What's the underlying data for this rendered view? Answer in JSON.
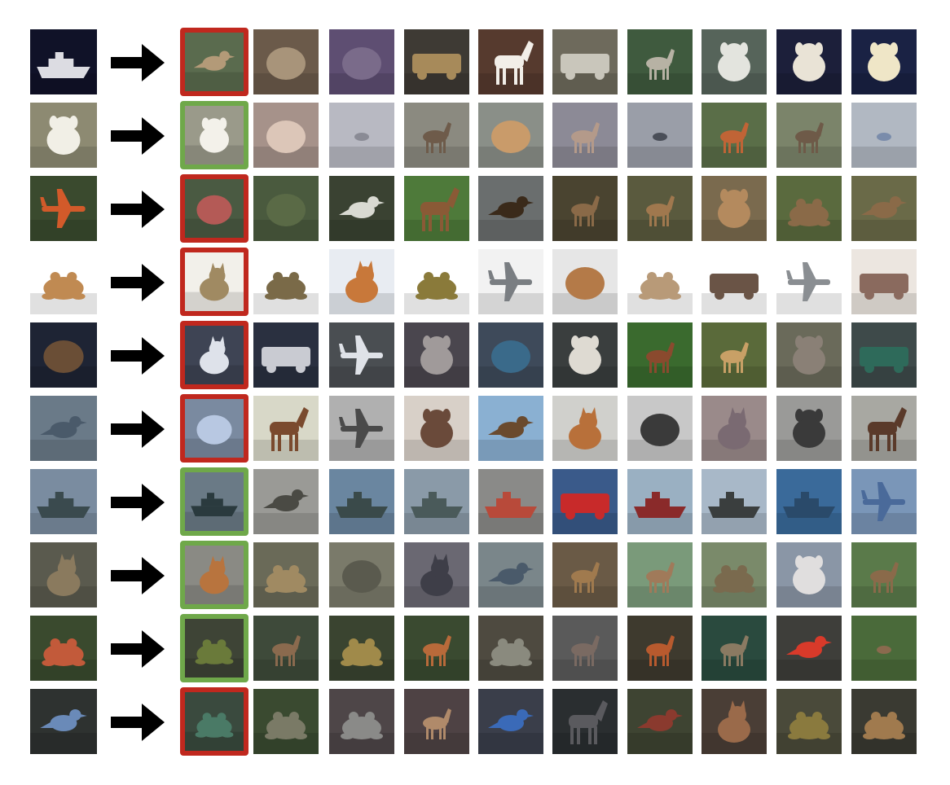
{
  "colors": {
    "incorrect": "#c0281e",
    "correct": "#6fa84a",
    "arrow": "#000000"
  },
  "rows": [
    {
      "query": {
        "bg": "#101228",
        "fg": "#dcdce2",
        "shape": "boat"
      },
      "first_match": "incorrect",
      "results": [
        {
          "bg": "#5a6b4e",
          "fg": "#b39a78",
          "shape": "bird"
        },
        {
          "bg": "#6b5a4a",
          "fg": "#a8947a",
          "shape": "blob"
        },
        {
          "bg": "#5e4e72",
          "fg": "#7a6b8a",
          "shape": "blob"
        },
        {
          "bg": "#3e3a34",
          "fg": "#a78a5a",
          "shape": "wide"
        },
        {
          "bg": "#563a2e",
          "fg": "#f2eee8",
          "shape": "horse"
        },
        {
          "bg": "#6e6a5c",
          "fg": "#c9c6bb",
          "shape": "wide"
        },
        {
          "bg": "#3f5a3e",
          "fg": "#b7b2a4",
          "shape": "deer"
        },
        {
          "bg": "#56645a",
          "fg": "#e3e4de",
          "shape": "dog"
        },
        {
          "bg": "#1c1f3a",
          "fg": "#e9e3d6",
          "shape": "dog"
        },
        {
          "bg": "#1a2244",
          "fg": "#efe6c7",
          "shape": "dog"
        }
      ]
    },
    {
      "query": {
        "bg": "#8d8a72",
        "fg": "#f1efe6",
        "shape": "dog"
      },
      "first_match": "correct",
      "results": [
        {
          "bg": "#9a9a8a",
          "fg": "#f3f1ea",
          "shape": "dog"
        },
        {
          "bg": "#a6928a",
          "fg": "#dcc6b8",
          "shape": "blob"
        },
        {
          "bg": "#b8b9c2",
          "fg": "#8a8b95",
          "shape": "dot"
        },
        {
          "bg": "#8b8a80",
          "fg": "#6e5b4a",
          "shape": "deer"
        },
        {
          "bg": "#8a8f88",
          "fg": "#c99b6a",
          "shape": "blob"
        },
        {
          "bg": "#8c8a96",
          "fg": "#b49a8a",
          "shape": "deer"
        },
        {
          "bg": "#9a9ea8",
          "fg": "#4a4e58",
          "shape": "dot"
        },
        {
          "bg": "#5a6e48",
          "fg": "#c06436",
          "shape": "deer"
        },
        {
          "bg": "#7b846a",
          "fg": "#6e5a48",
          "shape": "deer"
        },
        {
          "bg": "#b1b8c2",
          "fg": "#7a8cab",
          "shape": "dot"
        }
      ]
    },
    {
      "query": {
        "bg": "#3a4a2e",
        "fg": "#d25a2a",
        "shape": "plane"
      },
      "first_match": "incorrect",
      "results": [
        {
          "bg": "#4a5a42",
          "fg": "#b45a56",
          "shape": "blob"
        },
        {
          "bg": "#4a5a3e",
          "fg": "#5a6a46",
          "shape": "blob"
        },
        {
          "bg": "#3a4232",
          "fg": "#d9dad2",
          "shape": "bird"
        },
        {
          "bg": "#4e7a3a",
          "fg": "#8a5a36",
          "shape": "horse"
        },
        {
          "bg": "#6a6e6e",
          "fg": "#3a2a1a",
          "shape": "bird"
        },
        {
          "bg": "#4a4430",
          "fg": "#8a6a48",
          "shape": "deer"
        },
        {
          "bg": "#5a5a3e",
          "fg": "#a0784e",
          "shape": "deer"
        },
        {
          "bg": "#7a6a4e",
          "fg": "#b48a5e",
          "shape": "dog"
        },
        {
          "bg": "#5a6a3e",
          "fg": "#8a6a48",
          "shape": "frog"
        },
        {
          "bg": "#6a6a48",
          "fg": "#8a6a48",
          "shape": "bird"
        }
      ]
    },
    {
      "query": {
        "bg": "#ffffff",
        "fg": "#c08a52",
        "shape": "frog"
      },
      "first_match": "incorrect",
      "results": [
        {
          "bg": "#f2f0ea",
          "fg": "#a08a62",
          "shape": "cat"
        },
        {
          "bg": "#ffffff",
          "fg": "#7a6a48",
          "shape": "frog"
        },
        {
          "bg": "#e8ecf2",
          "fg": "#c8783a",
          "shape": "cat"
        },
        {
          "bg": "#ffffff",
          "fg": "#8a7a3a",
          "shape": "frog"
        },
        {
          "bg": "#f2f2f2",
          "fg": "#7a7e82",
          "shape": "plane"
        },
        {
          "bg": "#e6e6e6",
          "fg": "#b47a48",
          "shape": "blob"
        },
        {
          "bg": "#ffffff",
          "fg": "#b89a78",
          "shape": "frog"
        },
        {
          "bg": "#ffffff",
          "fg": "#6a5446",
          "shape": "wide"
        },
        {
          "bg": "#ffffff",
          "fg": "#8a8e92",
          "shape": "plane"
        },
        {
          "bg": "#ece6e0",
          "fg": "#8a6a5e",
          "shape": "wide"
        }
      ]
    },
    {
      "query": {
        "bg": "#1e2434",
        "fg": "#6a4e36",
        "shape": "blob"
      },
      "first_match": "incorrect",
      "results": [
        {
          "bg": "#3e4454",
          "fg": "#dee2ea",
          "shape": "cat"
        },
        {
          "bg": "#2a3040",
          "fg": "#c9cbd2",
          "shape": "wide"
        },
        {
          "bg": "#4a4e52",
          "fg": "#dfe2e8",
          "shape": "plane"
        },
        {
          "bg": "#4a464e",
          "fg": "#a09a9a",
          "shape": "dog"
        },
        {
          "bg": "#3e4a5a",
          "fg": "#3a6a8a",
          "shape": "blob"
        },
        {
          "bg": "#3a3e3e",
          "fg": "#dedad2",
          "shape": "dog"
        },
        {
          "bg": "#3a6a2e",
          "fg": "#8a4a2e",
          "shape": "deer"
        },
        {
          "bg": "#5a6a3a",
          "fg": "#c8a066",
          "shape": "deer"
        },
        {
          "bg": "#6a6a5a",
          "fg": "#8a8076",
          "shape": "dog"
        },
        {
          "bg": "#3e4a4a",
          "fg": "#2e6a5a",
          "shape": "wide"
        }
      ]
    },
    {
      "query": {
        "bg": "#6a7a88",
        "fg": "#4a5a6a",
        "shape": "bird"
      },
      "first_match": "incorrect",
      "results": [
        {
          "bg": "#7a8aa0",
          "fg": "#b8c8e2",
          "shape": "blob"
        },
        {
          "bg": "#d8d8c8",
          "fg": "#7a4a2e",
          "shape": "horse"
        },
        {
          "bg": "#b0b0b0",
          "fg": "#4a4a4a",
          "shape": "plane"
        },
        {
          "bg": "#d8d0c8",
          "fg": "#6a4a3a",
          "shape": "dog"
        },
        {
          "bg": "#8ab0d2",
          "fg": "#6a4a2e",
          "shape": "bird"
        },
        {
          "bg": "#d0d0cc",
          "fg": "#b8703a",
          "shape": "cat"
        },
        {
          "bg": "#c8c8c8",
          "fg": "#3a3a3a",
          "shape": "blob"
        },
        {
          "bg": "#9a8a8a",
          "fg": "#7a6a72",
          "shape": "cat"
        },
        {
          "bg": "#9a9a98",
          "fg": "#3a3a3a",
          "shape": "dog"
        },
        {
          "bg": "#a8a8a2",
          "fg": "#5a3a2a",
          "shape": "horse"
        }
      ]
    },
    {
      "query": {
        "bg": "#7a8ca0",
        "fg": "#3a4a4e",
        "shape": "boat"
      },
      "first_match": "correct",
      "results": [
        {
          "bg": "#6a7a86",
          "fg": "#2a3a3e",
          "shape": "boat"
        },
        {
          "bg": "#9a9a96",
          "fg": "#4a4a44",
          "shape": "bird"
        },
        {
          "bg": "#6a86a0",
          "fg": "#3a4a4a",
          "shape": "boat"
        },
        {
          "bg": "#8a9aa8",
          "fg": "#4a5a5a",
          "shape": "boat"
        },
        {
          "bg": "#8a8a88",
          "fg": "#b84a3a",
          "shape": "boat"
        },
        {
          "bg": "#3a5a8a",
          "fg": "#c82a2a",
          "shape": "wide"
        },
        {
          "bg": "#9ab0c2",
          "fg": "#8a2a2a",
          "shape": "boat"
        },
        {
          "bg": "#a8b8c8",
          "fg": "#3a3e3e",
          "shape": "boat"
        },
        {
          "bg": "#3a6a9a",
          "fg": "#2a4a6a",
          "shape": "boat"
        },
        {
          "bg": "#7a96b8",
          "fg": "#4a6a9a",
          "shape": "plane"
        }
      ]
    },
    {
      "query": {
        "bg": "#5a5a4e",
        "fg": "#8a7a5e",
        "shape": "cat"
      },
      "first_match": "correct",
      "results": [
        {
          "bg": "#8a8a84",
          "fg": "#b8743e",
          "shape": "cat"
        },
        {
          "bg": "#6a6a58",
          "fg": "#a08a62",
          "shape": "frog"
        },
        {
          "bg": "#7a7a6a",
          "fg": "#5a5a4e",
          "shape": "blob"
        },
        {
          "bg": "#6a6872",
          "fg": "#3e3e48",
          "shape": "cat"
        },
        {
          "bg": "#7a868a",
          "fg": "#4a5a6a",
          "shape": "bird"
        },
        {
          "bg": "#6a5a46",
          "fg": "#a07a4e",
          "shape": "deer"
        },
        {
          "bg": "#7a9a7a",
          "fg": "#a07a5a",
          "shape": "deer"
        },
        {
          "bg": "#7a8a6a",
          "fg": "#7a6a4e",
          "shape": "frog"
        },
        {
          "bg": "#8a96a6",
          "fg": "#e0dede",
          "shape": "dog"
        },
        {
          "bg": "#5a7a4a",
          "fg": "#8a6a4a",
          "shape": "deer"
        }
      ]
    },
    {
      "query": {
        "bg": "#3a4a2e",
        "fg": "#c25a3a",
        "shape": "frog"
      },
      "first_match": "correct",
      "results": [
        {
          "bg": "#3e4436",
          "fg": "#6a7a3a",
          "shape": "frog"
        },
        {
          "bg": "#3e4a3a",
          "fg": "#8a6a4e",
          "shape": "deer"
        },
        {
          "bg": "#3a4430",
          "fg": "#a08a4a",
          "shape": "frog"
        },
        {
          "bg": "#3a4a30",
          "fg": "#b86a3a",
          "shape": "deer"
        },
        {
          "bg": "#4e4a40",
          "fg": "#8a8a7e",
          "shape": "frog"
        },
        {
          "bg": "#5a5a5a",
          "fg": "#7a6a62",
          "shape": "deer"
        },
        {
          "bg": "#3e3a2e",
          "fg": "#b85a2e",
          "shape": "deer"
        },
        {
          "bg": "#2a4a3e",
          "fg": "#8a7a62",
          "shape": "deer"
        },
        {
          "bg": "#3e3e3a",
          "fg": "#d83a2a",
          "shape": "bird"
        },
        {
          "bg": "#4a6a3a",
          "fg": "#8a6a4e",
          "shape": "dot"
        }
      ]
    },
    {
      "query": {
        "bg": "#2e3230",
        "fg": "#6a8ab8",
        "shape": "bird"
      },
      "first_match": "incorrect",
      "results": [
        {
          "bg": "#3a4a3e",
          "fg": "#4a7a66",
          "shape": "frog"
        },
        {
          "bg": "#3a4a30",
          "fg": "#7a7a66",
          "shape": "frog"
        },
        {
          "bg": "#4e4648",
          "fg": "#8a8a88",
          "shape": "frog"
        },
        {
          "bg": "#4e4244",
          "fg": "#b08a6a",
          "shape": "deer"
        },
        {
          "bg": "#3a3e4a",
          "fg": "#3a6ab8",
          "shape": "bird"
        },
        {
          "bg": "#2a2e30",
          "fg": "#5a5a5e",
          "shape": "horse"
        },
        {
          "bg": "#3e4432",
          "fg": "#8a3a2e",
          "shape": "bird"
        },
        {
          "bg": "#4a3e36",
          "fg": "#9a6a4a",
          "shape": "cat"
        },
        {
          "bg": "#4a4a3a",
          "fg": "#8a7a3e",
          "shape": "frog"
        },
        {
          "bg": "#3a3a32",
          "fg": "#a07a4e",
          "shape": "frog"
        }
      ]
    }
  ]
}
